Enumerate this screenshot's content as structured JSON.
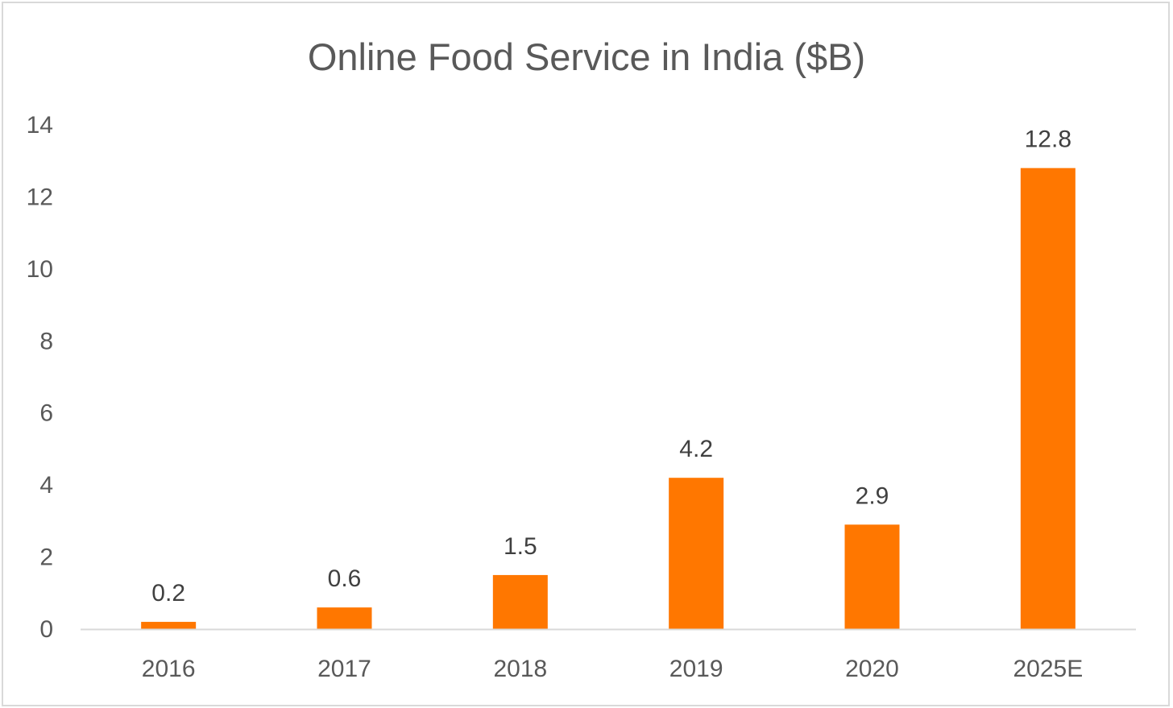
{
  "chart_data": {
    "type": "bar",
    "title": "Online Food Service in India ($B)",
    "xlabel": "",
    "ylabel": "",
    "categories": [
      "2016",
      "2017",
      "2018",
      "2019",
      "2020",
      "2025E"
    ],
    "values": [
      0.2,
      0.6,
      1.5,
      4.2,
      2.9,
      12.8
    ],
    "data_labels": [
      "0.2",
      "0.6",
      "1.5",
      "4.2",
      "2.9",
      "12.8"
    ],
    "ylim": [
      0,
      14
    ],
    "y_ticks": [
      "0",
      "2",
      "4",
      "6",
      "8",
      "10",
      "12",
      "14"
    ],
    "grid": false,
    "legend": "none",
    "bar_color": "#FF7700"
  }
}
